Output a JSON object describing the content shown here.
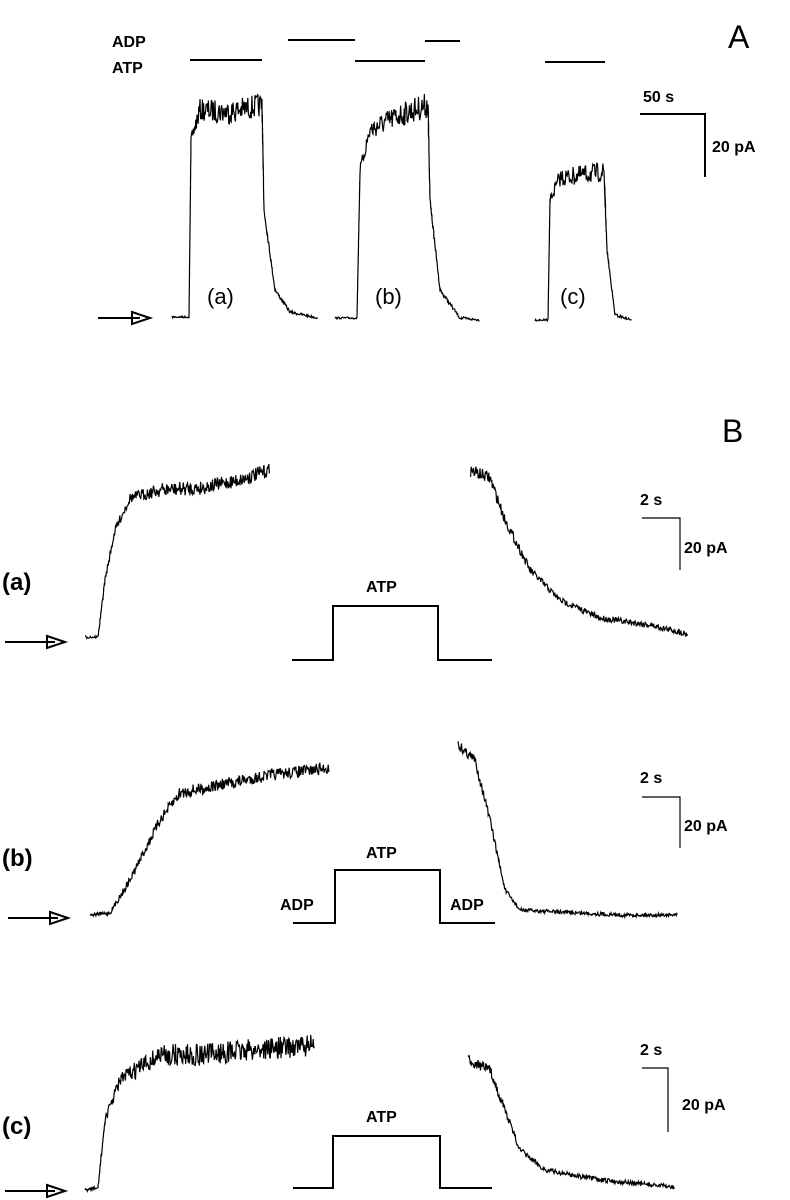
{
  "panel_a": {
    "label": "A",
    "solution_labels": [
      "ADP",
      "ATP"
    ],
    "scale_bar": {
      "time": "50 s",
      "current": "20 pA"
    },
    "trace_labels": [
      "(a)",
      "(b)",
      "(c)"
    ]
  },
  "panel_b": {
    "label": "B",
    "rows": [
      {
        "label": "(a)",
        "pulse_labels": [
          "ATP"
        ],
        "scale_bar": {
          "time": "2 s",
          "current": "20 pA"
        }
      },
      {
        "label": "(b)",
        "pulse_labels": [
          "ATP",
          "ADP",
          "ADP"
        ],
        "scale_bar": {
          "time": "2 s",
          "current": "20 pA"
        }
      },
      {
        "label": "(c)",
        "pulse_labels": [
          "ATP"
        ],
        "scale_bar": {
          "time": "2 s",
          "current": "20 pA"
        }
      }
    ]
  }
}
